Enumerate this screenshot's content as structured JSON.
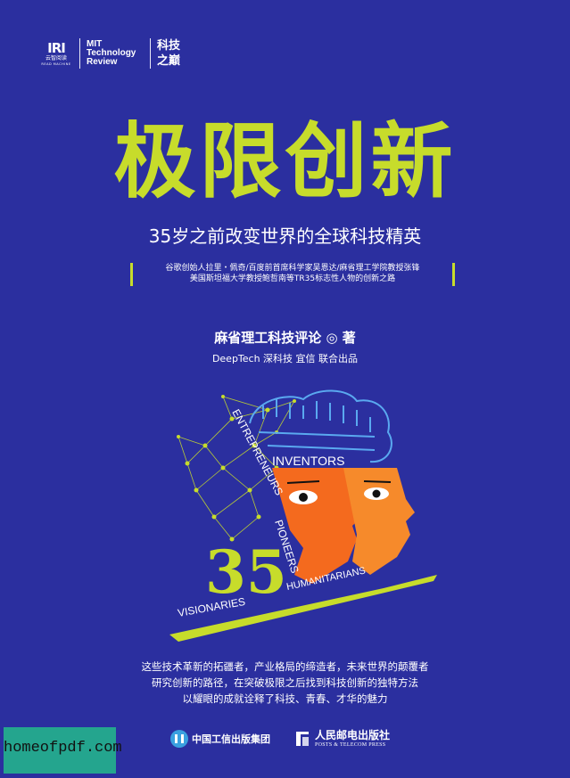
{
  "logos": {
    "readwise_mark": "IRI",
    "readwise_name": "云智阅读",
    "readwise_sub": "READ MACHINE",
    "mit_line1": "MIT",
    "mit_line2": "Technology",
    "mit_line3": "Review",
    "kj_line1": "科技",
    "kj_line2": "之巅"
  },
  "title": "极限创新",
  "subtitle": "35岁之前改变世界的全球科技精英",
  "tagline": {
    "line1": "谷歌创始人拉里・佩奇/百度前首席科学家吴恩达/麻省理工学院教授张锋",
    "line2": "美国斯坦福大学教授鲍哲南等TR35标志性人物的创新之路"
  },
  "author": "麻省理工科技评论 ◎ 著",
  "copublishers": "DeepTech 深科技   宜信   联合出品",
  "art": {
    "word_inventors": "INVENTORS",
    "word_entrepreneurs": "ENTREPRENEURS",
    "word_pioneers": "PIONEERS",
    "word_humanitarians": "HUMANITARIANS",
    "word_visionaries": "VISIONARIES",
    "number": "35"
  },
  "blurb": {
    "line1": "这些技术革新的拓疆者，产业格局的缔造者，未来世界的颠覆者",
    "line2": "研究创新的路径，在突破极限之后找到科技创新的独特方法",
    "line3": "以耀眼的成就诠释了科技、青春、才华的魅力"
  },
  "publishers": {
    "pub1": "中国工信出版集团",
    "pub2_cn": "人民邮电出版社",
    "pub2_en": "POSTS & TELECOM PRESS"
  },
  "watermark": "homeofpdf.com",
  "colors": {
    "background": "#2b2f9f",
    "accent_green": "#c7dc2b",
    "face_orange": "#f46a1e",
    "brain_blue": "#5aa9f0"
  }
}
